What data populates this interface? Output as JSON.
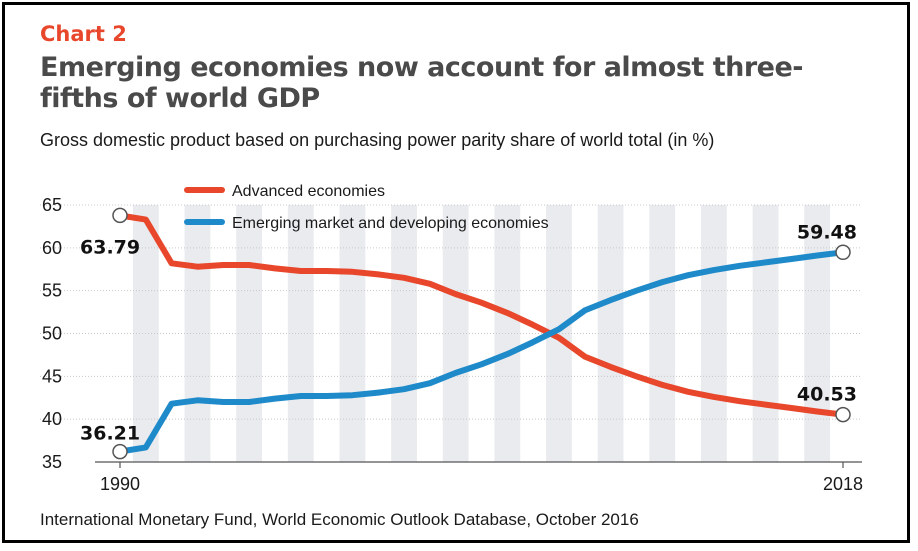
{
  "header": {
    "kicker": "Chart 2",
    "title": "Emerging economies now account for almost three-fifths of world GDP",
    "subtitle": "Gross domestic product based on purchasing power parity share of world total (in %)"
  },
  "footer": {
    "source": "International Monetary Fund, World Economic Outlook Database, October 2016"
  },
  "chart_data": {
    "type": "line",
    "title": "Emerging economies now account for almost three-fifths of world GDP",
    "subtitle": "Gross domestic product based on purchasing power parity share of world total (in %)",
    "xlabel": "",
    "ylabel": "",
    "x": [
      1990,
      1991,
      1992,
      1993,
      1994,
      1995,
      1996,
      1997,
      1998,
      1999,
      2000,
      2001,
      2002,
      2003,
      2004,
      2005,
      2006,
      2007,
      2008,
      2009,
      2010,
      2011,
      2012,
      2013,
      2014,
      2015,
      2016,
      2017,
      2018
    ],
    "x_tick_labels": [
      "1990",
      "2018"
    ],
    "ylim": [
      35,
      65
    ],
    "y_ticks": [
      "35",
      "40",
      "45",
      "50",
      "55",
      "60",
      "65"
    ],
    "grid": true,
    "legend_position": "top-center",
    "series": [
      {
        "name": "Advanced economies",
        "color": "#e8472c",
        "values": [
          63.79,
          63.3,
          58.2,
          57.8,
          58.0,
          58.0,
          57.6,
          57.3,
          57.3,
          57.2,
          56.9,
          56.5,
          55.8,
          54.6,
          53.6,
          52.4,
          51.0,
          49.5,
          47.3,
          46.1,
          45.0,
          44.0,
          43.2,
          42.6,
          42.1,
          41.7,
          41.3,
          40.9,
          40.53
        ]
      },
      {
        "name": "Emerging market and developing economies",
        "color": "#1f8ac9",
        "values": [
          36.21,
          36.7,
          41.8,
          42.2,
          42.0,
          42.0,
          42.4,
          42.7,
          42.7,
          42.8,
          43.1,
          43.5,
          44.2,
          45.4,
          46.4,
          47.6,
          49.0,
          50.5,
          52.7,
          53.9,
          55.0,
          56.0,
          56.8,
          57.4,
          57.9,
          58.3,
          58.7,
          59.1,
          59.48
        ]
      }
    ],
    "annotations": [
      {
        "series": 0,
        "x": 1990,
        "text": "63.79"
      },
      {
        "series": 1,
        "x": 1990,
        "text": "36.21"
      },
      {
        "series": 1,
        "x": 2018,
        "text": "59.48"
      },
      {
        "series": 0,
        "x": 2018,
        "text": "40.53"
      }
    ]
  }
}
